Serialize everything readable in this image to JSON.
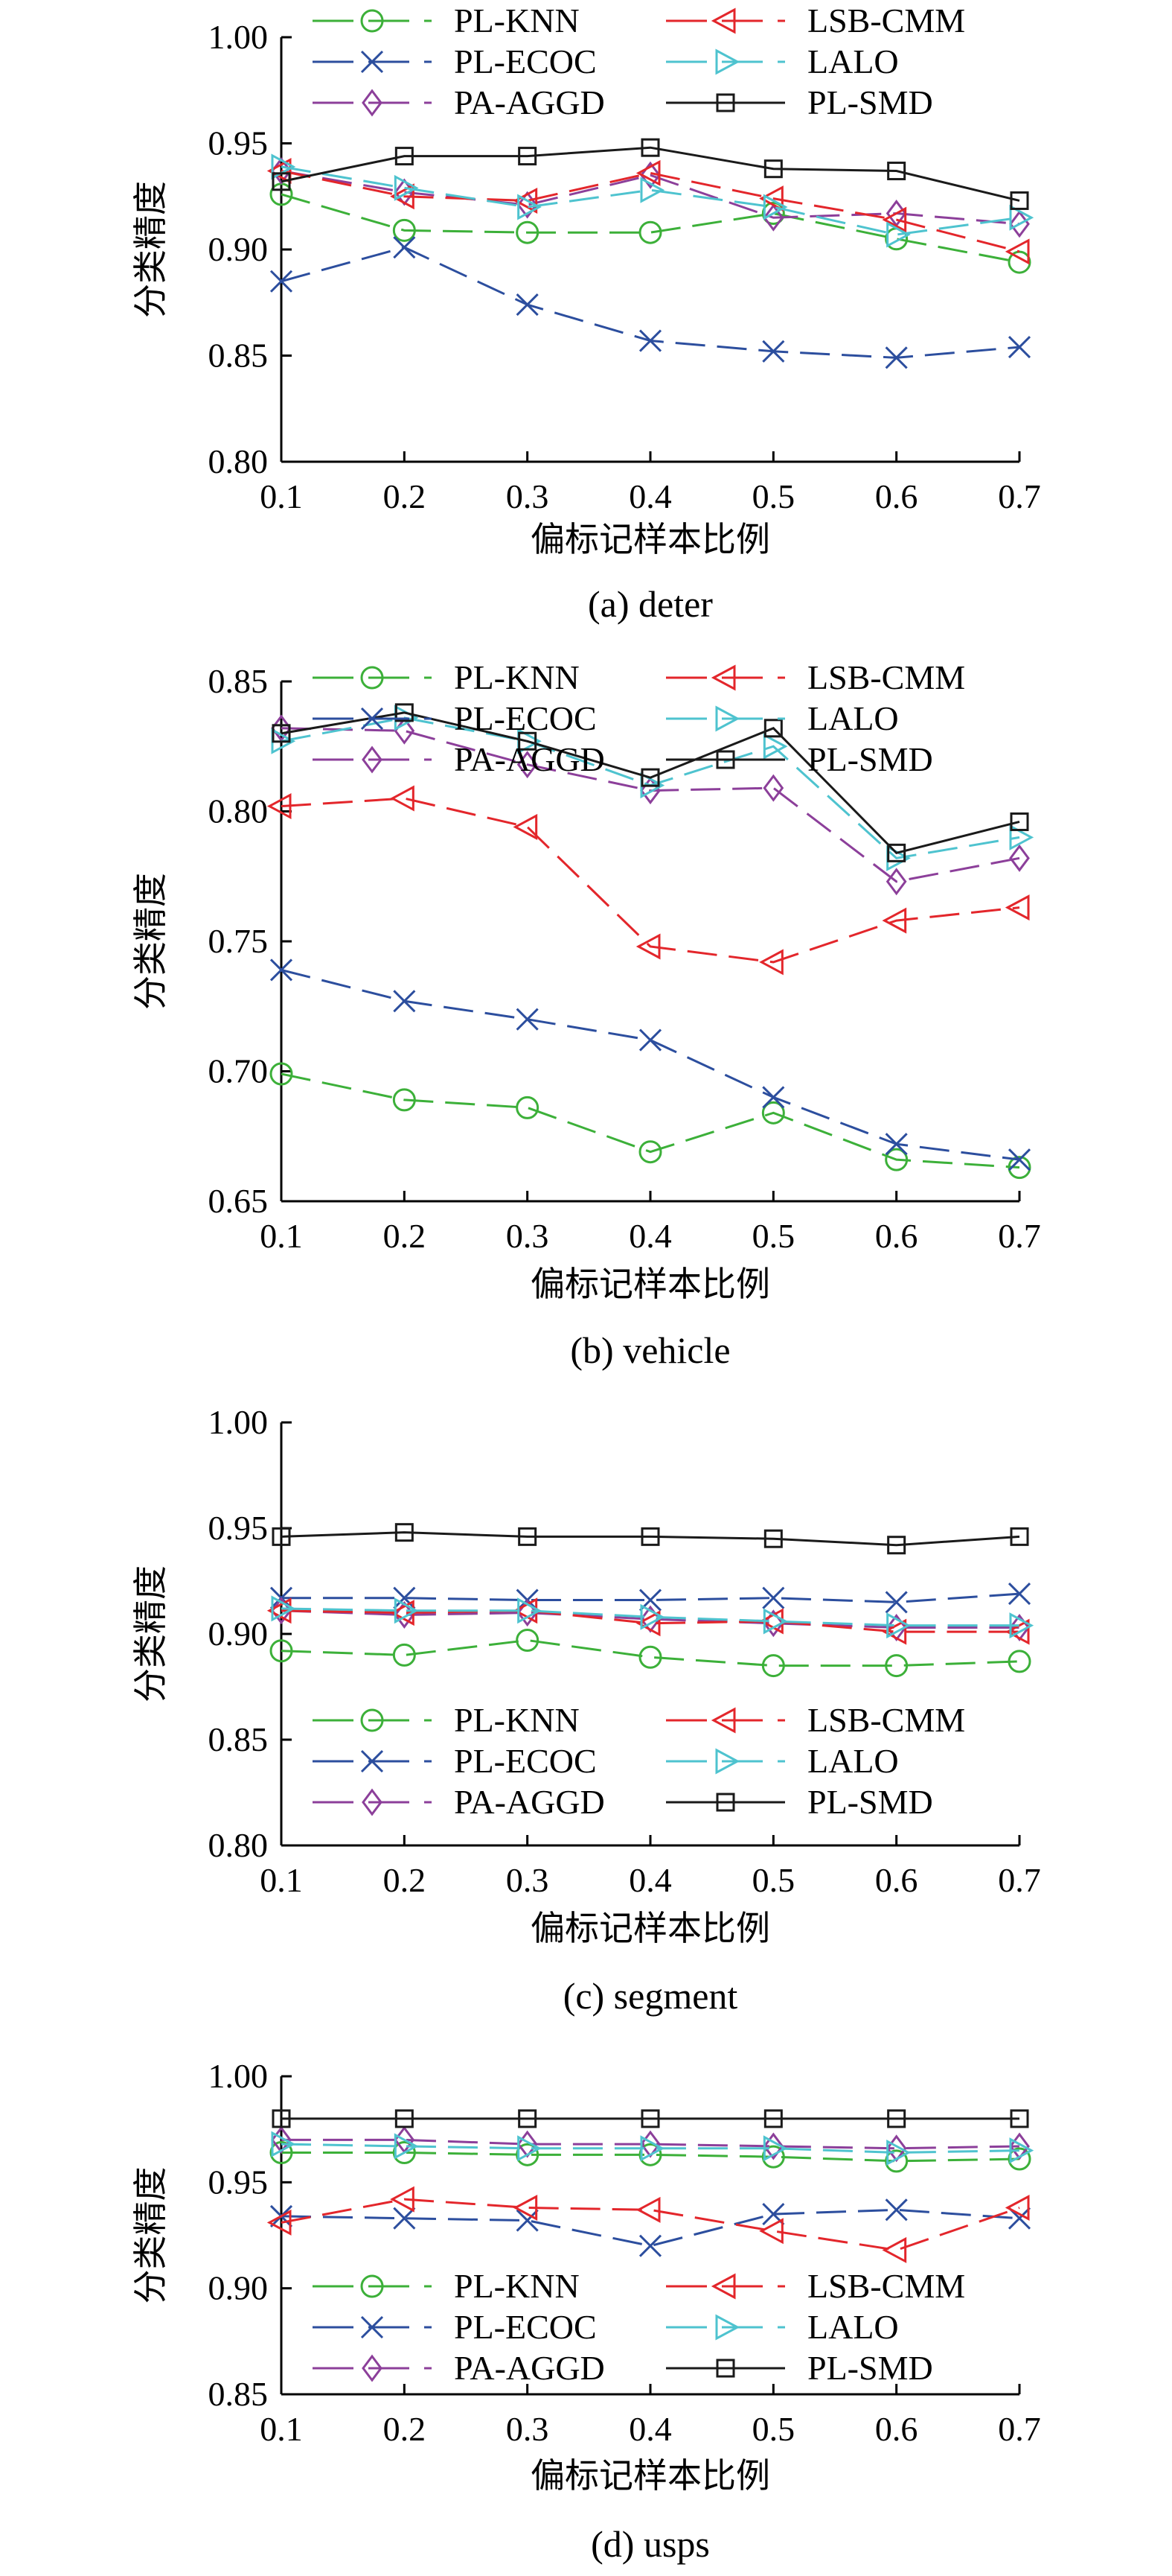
{
  "chart_data": [
    {
      "type": "line",
      "caption": "(a) deter",
      "xlabel": "偏标记样本比例",
      "ylabel": "分类精度",
      "x": [
        0.1,
        0.2,
        0.3,
        0.4,
        0.5,
        0.6,
        0.7
      ],
      "xticks": [
        "0.1",
        "0.2",
        "0.3",
        "0.4",
        "0.5",
        "0.6",
        "0.7"
      ],
      "yticks": [
        "0.80",
        "0.85",
        "0.90",
        "0.95",
        "1.00"
      ],
      "ylim": [
        0.8,
        1.0
      ],
      "legend_position": "top",
      "series": [
        {
          "name": "PL-KNN",
          "values": [
            0.926,
            0.909,
            0.908,
            0.908,
            0.917,
            0.905,
            0.894
          ]
        },
        {
          "name": "PL-ECOC",
          "values": [
            0.885,
            0.901,
            0.874,
            0.857,
            0.852,
            0.849,
            0.854
          ]
        },
        {
          "name": "PA-AGGD",
          "values": [
            0.937,
            0.927,
            0.921,
            0.935,
            0.915,
            0.917,
            0.912
          ]
        },
        {
          "name": "LSB-CMM",
          "values": [
            0.937,
            0.925,
            0.923,
            0.936,
            0.924,
            0.914,
            0.899
          ]
        },
        {
          "name": "LALO",
          "values": [
            0.939,
            0.929,
            0.92,
            0.928,
            0.92,
            0.907,
            0.915
          ]
        },
        {
          "name": "PL-SMD",
          "values": [
            0.932,
            0.944,
            0.944,
            0.948,
            0.938,
            0.937,
            0.923
          ]
        }
      ]
    },
    {
      "type": "line",
      "caption": "(b) vehicle",
      "xlabel": "偏标记样本比例",
      "ylabel": "分类精度",
      "x": [
        0.1,
        0.2,
        0.3,
        0.4,
        0.5,
        0.6,
        0.7
      ],
      "xticks": [
        "0.1",
        "0.2",
        "0.3",
        "0.4",
        "0.5",
        "0.6",
        "0.7"
      ],
      "yticks": [
        "0.65",
        "0.70",
        "0.75",
        "0.80",
        "0.85"
      ],
      "ylim": [
        0.65,
        0.85
      ],
      "legend_position": "top",
      "series": [
        {
          "name": "PL-KNN",
          "values": [
            0.699,
            0.689,
            0.686,
            0.669,
            0.684,
            0.666,
            0.663
          ]
        },
        {
          "name": "PL-ECOC",
          "values": [
            0.739,
            0.727,
            0.72,
            0.712,
            0.69,
            0.672,
            0.666
          ]
        },
        {
          "name": "PA-AGGD",
          "values": [
            0.832,
            0.831,
            0.818,
            0.808,
            0.809,
            0.773,
            0.782
          ]
        },
        {
          "name": "LSB-CMM",
          "values": [
            0.802,
            0.805,
            0.794,
            0.748,
            0.742,
            0.758,
            0.763
          ]
        },
        {
          "name": "LALO",
          "values": [
            0.827,
            0.836,
            0.827,
            0.81,
            0.825,
            0.782,
            0.79
          ]
        },
        {
          "name": "PL-SMD",
          "values": [
            0.83,
            0.838,
            0.827,
            0.813,
            0.832,
            0.784,
            0.796
          ]
        }
      ]
    },
    {
      "type": "line",
      "caption": "(c) segment",
      "xlabel": "偏标记样本比例",
      "ylabel": "分类精度",
      "x": [
        0.1,
        0.2,
        0.3,
        0.4,
        0.5,
        0.6,
        0.7
      ],
      "xticks": [
        "0.1",
        "0.2",
        "0.3",
        "0.4",
        "0.5",
        "0.6",
        "0.7"
      ],
      "yticks": [
        "0.80",
        "0.85",
        "0.90",
        "0.95",
        "1.00"
      ],
      "ylim": [
        0.8,
        1.0
      ],
      "legend_position": "bottom",
      "series": [
        {
          "name": "PL-KNN",
          "values": [
            0.892,
            0.89,
            0.897,
            0.889,
            0.885,
            0.885,
            0.887
          ]
        },
        {
          "name": "PL-ECOC",
          "values": [
            0.917,
            0.917,
            0.916,
            0.916,
            0.917,
            0.915,
            0.919
          ]
        },
        {
          "name": "PA-AGGD",
          "values": [
            0.911,
            0.909,
            0.91,
            0.907,
            0.905,
            0.903,
            0.903
          ]
        },
        {
          "name": "LSB-CMM",
          "values": [
            0.911,
            0.91,
            0.911,
            0.905,
            0.906,
            0.901,
            0.901
          ]
        },
        {
          "name": "LALO",
          "values": [
            0.912,
            0.911,
            0.911,
            0.908,
            0.906,
            0.904,
            0.904
          ]
        },
        {
          "name": "PL-SMD",
          "values": [
            0.946,
            0.948,
            0.946,
            0.946,
            0.945,
            0.942,
            0.946
          ]
        }
      ]
    },
    {
      "type": "line",
      "caption": "(d) usps",
      "xlabel": "偏标记样本比例",
      "ylabel": "分类精度",
      "x": [
        0.1,
        0.2,
        0.3,
        0.4,
        0.5,
        0.6,
        0.7
      ],
      "xticks": [
        "0.1",
        "0.2",
        "0.3",
        "0.4",
        "0.5",
        "0.6",
        "0.7"
      ],
      "yticks": [
        "0.85",
        "0.90",
        "0.95",
        "1.00"
      ],
      "ylim": [
        0.85,
        1.0
      ],
      "legend_position": "bottom",
      "series": [
        {
          "name": "PL-KNN",
          "values": [
            0.964,
            0.964,
            0.963,
            0.963,
            0.962,
            0.96,
            0.961
          ]
        },
        {
          "name": "PL-ECOC",
          "values": [
            0.934,
            0.933,
            0.932,
            0.92,
            0.935,
            0.937,
            0.933
          ]
        },
        {
          "name": "PA-AGGD",
          "values": [
            0.97,
            0.97,
            0.968,
            0.968,
            0.967,
            0.966,
            0.967
          ]
        },
        {
          "name": "LSB-CMM",
          "values": [
            0.931,
            0.942,
            0.938,
            0.937,
            0.927,
            0.918,
            0.938
          ]
        },
        {
          "name": "LALO",
          "values": [
            0.968,
            0.967,
            0.966,
            0.966,
            0.966,
            0.964,
            0.965
          ]
        },
        {
          "name": "PL-SMD",
          "values": [
            0.98,
            0.98,
            0.98,
            0.98,
            0.98,
            0.98,
            0.98
          ]
        }
      ]
    }
  ],
  "series_style": {
    "PL-KNN": {
      "color": "#3cb039",
      "marker": "circle",
      "dash": "long"
    },
    "PL-ECOC": {
      "color": "#2c4e9e",
      "marker": "x",
      "dash": "long"
    },
    "PA-AGGD": {
      "color": "#8c3f9a",
      "marker": "diamond",
      "dash": "long"
    },
    "LSB-CMM": {
      "color": "#e3262b",
      "marker": "triangle-left",
      "dash": "long"
    },
    "LALO": {
      "color": "#4ec3cf",
      "marker": "triangle-right",
      "dash": "long"
    },
    "PL-SMD": {
      "color": "#1a1a1a",
      "marker": "square",
      "dash": "solid"
    }
  }
}
